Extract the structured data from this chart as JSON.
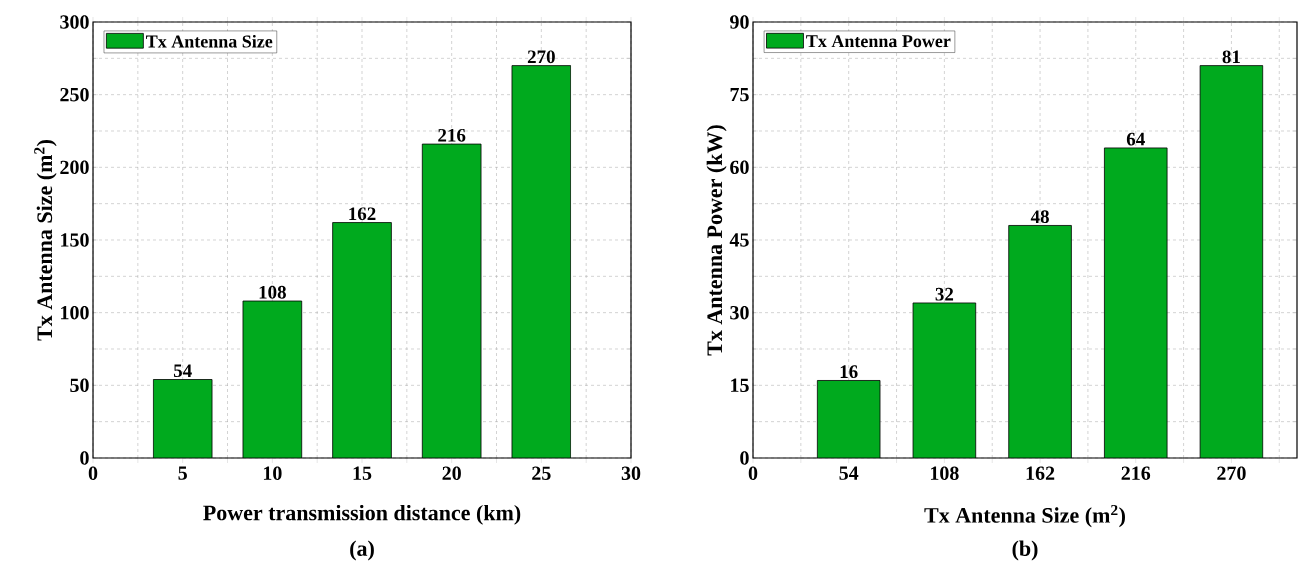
{
  "chart_data": [
    {
      "type": "bar",
      "x": [
        5,
        10,
        15,
        20,
        25
      ],
      "xlabel": "Power transmission distance (km)",
      "ylabel": "Tx Antenna Size (m$^{2}$)",
      "series": [
        {
          "name": "Tx Antenna Size",
          "color": "#00aa1e",
          "values": [
            54,
            108,
            162,
            216,
            270
          ]
        }
      ],
      "xlim": [
        0,
        30
      ],
      "xticks": [
        0,
        {
          "value": 2.5,
          "label": null
        },
        5,
        {
          "value": 7.5,
          "label": null
        },
        10,
        {
          "value": 12.5,
          "label": null
        },
        15,
        {
          "value": 17.5,
          "label": null
        },
        20,
        {
          "value": 22.5,
          "label": null
        },
        25,
        {
          "value": 27.5,
          "label": null
        },
        30
      ],
      "ylim": [
        0,
        300
      ],
      "yticks": [
        0,
        {
          "value": 25,
          "label": null
        },
        50,
        {
          "value": 75,
          "label": null
        },
        100,
        {
          "value": 125,
          "label": null
        },
        150,
        {
          "value": 175,
          "label": null
        },
        200,
        {
          "value": 225,
          "label": null
        },
        250,
        {
          "value": 275,
          "label": null
        },
        300
      ],
      "grid": true,
      "legend": "top left",
      "data_labels": true,
      "annotations": [
        "(a)"
      ]
    },
    {
      "type": "bar",
      "x": [
        54,
        108,
        162,
        216,
        270
      ],
      "xlabel": "Tx Antenna Size (m$^{2}$)",
      "ylabel": "Tx Antenna Power (kW)",
      "series": [
        {
          "name": "Tx Antenna Power",
          "color": "#00aa1e",
          "values": [
            16,
            32,
            48,
            64,
            81
          ]
        }
      ],
      "xlim": [
        0,
        307
      ],
      "xticks": [
        0,
        {
          "value": 27,
          "label": null
        },
        54,
        {
          "value": 81,
          "label": null
        },
        108,
        {
          "value": 135,
          "label": null
        },
        162,
        {
          "value": 189,
          "label": null
        },
        216,
        {
          "value": 243,
          "label": null
        },
        270,
        {
          "value": 297,
          "label": null
        }
      ],
      "ylim": [
        0,
        90
      ],
      "yticks": [
        0,
        {
          "value": 7.5,
          "label": null
        },
        15,
        {
          "value": 22.5,
          "label": null
        },
        30,
        {
          "value": 37.5,
          "label": null
        },
        45,
        {
          "value": 52.5,
          "label": null
        },
        60,
        {
          "value": 67.5,
          "label": null
        },
        75,
        {
          "value": 82.5,
          "label": null
        },
        90
      ],
      "grid": true,
      "legend": "top left",
      "data_labels": true,
      "annotations": [
        "(b)"
      ]
    }
  ]
}
